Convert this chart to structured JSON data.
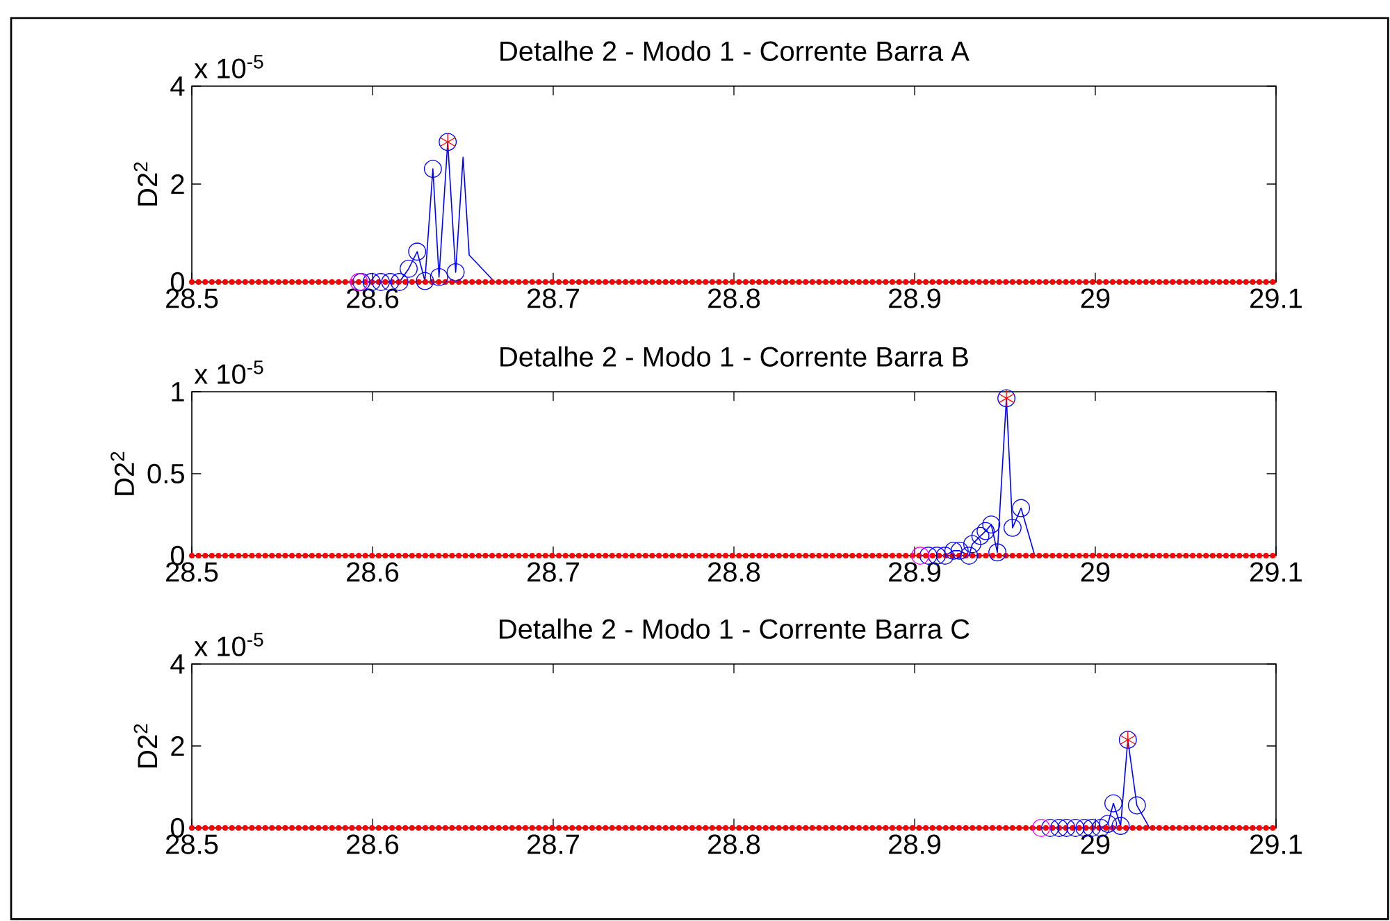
{
  "chart_data": [
    {
      "type": "line",
      "title": "Detalhe 2 - Modo 1 - Corrente Barra A",
      "ylabel": "D2$^{2}$",
      "annotations": [
        "x 10$^{-5}$"
      ],
      "xlim": [
        28.5,
        29.1
      ],
      "xticks": [
        28.5,
        28.6,
        28.7,
        28.8,
        28.9,
        29,
        29.1
      ],
      "ylim": [
        0,
        4
      ],
      "yticks": [
        0,
        2,
        4
      ],
      "series": [
        {
          "marker": "none",
          "color": "#0000ff",
          "x": [
            28.5925,
            28.5938,
            28.5995,
            28.6046,
            28.6098,
            28.6149,
            28.62,
            28.6247,
            28.629,
            28.6334,
            28.6368,
            28.6416,
            28.646,
            28.6501,
            28.6535,
            28.6676
          ],
          "values": [
            0,
            0,
            0,
            0,
            0,
            0,
            0.27,
            0.62,
            0.02,
            2.31,
            0.1,
            2.86,
            0.2,
            2.55,
            0.55,
            0
          ]
        },
        {
          "type": "scatter",
          "marker": "circle",
          "color": "#0000ff",
          "x": [
            28.5938,
            28.5995,
            28.6046,
            28.6098,
            28.6149,
            28.62,
            28.6247,
            28.629,
            28.6334,
            28.6368,
            28.6416,
            28.646
          ],
          "values": [
            0,
            0,
            0,
            0,
            0,
            0.27,
            0.62,
            0.02,
            2.31,
            0.1,
            2.86,
            0.2
          ]
        },
        {
          "type": "scatter",
          "marker": "circle",
          "color": "#ff00ff",
          "x": [
            28.5925
          ],
          "values": [
            0
          ]
        },
        {
          "type": "scatter",
          "marker": "cross",
          "color": "#ff0000",
          "x": [
            28.6416
          ],
          "values": [
            2.86
          ]
        },
        {
          "type": "line",
          "marker": "none",
          "line_style": "dotted",
          "color": "#ff0000",
          "x": [
            28.5,
            29.1
          ],
          "values": [
            0,
            0
          ]
        }
      ]
    },
    {
      "type": "line",
      "title": "Detalhe 2 - Modo 1 - Corrente Barra B",
      "ylabel": "D2$^{2}$",
      "annotations": [
        "x 10$^{-5}$"
      ],
      "xlim": [
        28.5,
        29.1
      ],
      "xticks": [
        28.5,
        28.6,
        28.7,
        28.8,
        28.9,
        29,
        29.1
      ],
      "ylim": [
        0,
        1
      ],
      "yticks": [
        0,
        0.5,
        1
      ],
      "series": [
        {
          "marker": "none",
          "color": "#0000ff",
          "x": [
            28.9031,
            28.9076,
            28.9123,
            28.9168,
            28.9215,
            28.9249,
            28.9301,
            28.9319,
            28.9364,
            28.9393,
            28.9424,
            28.9458,
            28.9508,
            28.9542,
            28.9589,
            28.9665
          ],
          "values": [
            0,
            0,
            0,
            0,
            0.03,
            0.03,
            0,
            0.07,
            0.12,
            0.15,
            0.19,
            0.02,
            0.96,
            0.17,
            0.29,
            0
          ]
        },
        {
          "type": "scatter",
          "marker": "circle",
          "color": "#0000ff",
          "x": [
            28.9076,
            28.9123,
            28.9168,
            28.9215,
            28.9249,
            28.9301,
            28.9319,
            28.9364,
            28.9393,
            28.9424,
            28.9458,
            28.9508,
            28.9542,
            28.9589
          ],
          "values": [
            0,
            0,
            0,
            0.03,
            0.03,
            0,
            0.07,
            0.12,
            0.15,
            0.19,
            0.02,
            0.96,
            0.17,
            0.29
          ]
        },
        {
          "type": "scatter",
          "marker": "circle",
          "color": "#ff00ff",
          "x": [
            28.9031
          ],
          "values": [
            0
          ]
        },
        {
          "type": "scatter",
          "marker": "cross",
          "color": "#ff0000",
          "x": [
            28.9508
          ],
          "values": [
            0.96
          ]
        },
        {
          "type": "line",
          "marker": "none",
          "line_style": "dotted",
          "color": "#ff0000",
          "x": [
            28.5,
            29.1
          ],
          "values": [
            0,
            0
          ]
        }
      ]
    },
    {
      "type": "line",
      "title": "Detalhe 2 - Modo 1 - Corrente Barra C",
      "ylabel": "D2$^{2}$",
      "annotations": [
        "x 10$^{-5}$"
      ],
      "xlim": [
        28.5,
        29.1
      ],
      "xticks": [
        28.5,
        28.6,
        28.7,
        28.8,
        28.9,
        29,
        29.1
      ],
      "ylim": [
        0,
        4
      ],
      "yticks": [
        0,
        2,
        4
      ],
      "series": [
        {
          "marker": "none",
          "color": "#0000ff",
          "x": [
            28.97,
            28.975,
            28.98,
            28.984,
            28.989,
            28.994,
            28.998,
            29.003,
            29.007,
            29.01,
            29.014,
            29.018,
            29.023,
            29.03
          ],
          "values": [
            0,
            0,
            0,
            0,
            0,
            0,
            0,
            0,
            0.1,
            0.6,
            0.05,
            2.15,
            0.55,
            0
          ]
        },
        {
          "type": "scatter",
          "marker": "circle",
          "color": "#0000ff",
          "x": [
            28.975,
            28.98,
            28.984,
            28.989,
            28.994,
            28.998,
            29.003,
            29.007,
            29.01,
            29.014,
            29.018,
            29.023
          ],
          "values": [
            0,
            0,
            0,
            0,
            0,
            0,
            0,
            0.1,
            0.6,
            0.05,
            2.15,
            0.55
          ]
        },
        {
          "type": "scatter",
          "marker": "circle",
          "color": "#ff00ff",
          "x": [
            28.97
          ],
          "values": [
            0
          ]
        },
        {
          "type": "scatter",
          "marker": "cross",
          "color": "#ff0000",
          "x": [
            29.018
          ],
          "values": [
            2.15
          ]
        },
        {
          "type": "line",
          "marker": "none",
          "line_style": "dotted",
          "color": "#ff0000",
          "x": [
            28.5,
            29.1
          ],
          "values": [
            0,
            0
          ]
        }
      ]
    }
  ]
}
